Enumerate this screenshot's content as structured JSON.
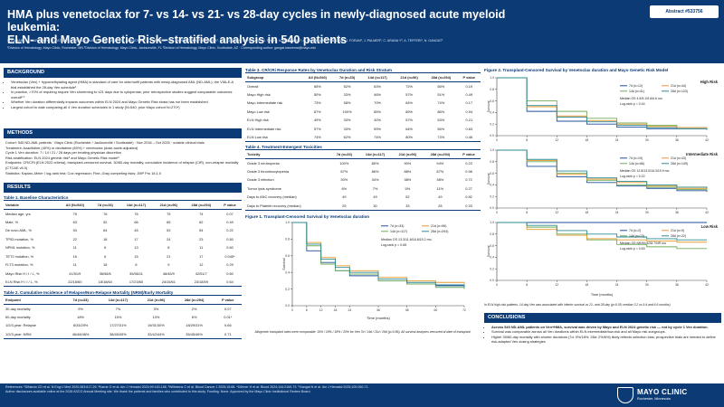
{
  "header": {
    "title_line1": "HMA plus venetoclax for 7- vs 14- vs 21- vs 28-day cycles in newly-diagnosed acute myeloid leukemia:",
    "title_line2": "ELN- and Mayo Genetic Risk–stratified analysis in 540 patients",
    "authors": "S. KUMAR¹, M. WARRAICH¹, M. FATIMA¹, K. MCCULLOUGH¹, A. AL-KALI¹, H.B. ALKHATEEB¹, K.H. BEGNA¹, A.A. MANGAONKAR¹, A. SAUBA¹, M.R. LITZOW¹, W. HOGAN¹, M. SHAH¹, M.M. PATNAIK¹, A. PARDANANI¹, T. BADAR², J. FORAN², J. PALMER³, C. ARANA Y³, A. TEFFERI¹, N. GANGAT¹",
    "affiliations": "¹Division of Hematology, Mayo Clinic, Rochester, MN  ²Division of Hematology, Mayo Clinic, Jacksonville, FL  ³Division of Hematology, Mayo Clinic, Scottsdale, AZ  · Corresponding author: gangat.naseema@mayo.edu",
    "abstract_badge": "Abstract #533756"
  },
  "background": {
    "heading": "BACKGROUND",
    "bullets": [
      "Venetoclax (Ven) + hypomethylating agent (HMA) is standard of care for older/unfit patients with newly-diagnosed AML (ND-AML); the VIALE-A trial established the 28-day Ven schedule¹",
      "In practice, >70% of requiring require Ven shortening to ≤21 days due to cytopenias; prior retrospective studies suggest comparable outcomes overall²·³",
      "Whether Ven duration differentially impacts outcomes within ELN 2024 and Mayo Genetic Risk strata has not been established",
      "Largest cohort to date comparing all 4 Ven duration schedules in 1 study (N=540; prior Mayo cohort N=270⁴)"
    ]
  },
  "methods": {
    "heading": "METHODS",
    "lines": [
      "Cohort: 540 ND-AML patients · Mayo Clinic (Rochester / Jacksonville / Scottsdale) · Nov 2018 – Oct 2025 · outside clinical trials",
      "Treatment: Azacitidine (40%) or decitabine (60%) + venetoclax (dose acide-adjusted)",
      "Cycle 1 Ven duration: 7 / 14 / 21 / 28 days per treating physician discretion",
      "Risk stratification: ELN 2024 genetic risk⁶ and Mayo Genetic Risk model⁵",
      "Endpoints: CR/CRi (ELN 2022 criteria), transplant-censored survival, 30/60-day mortality, cumulative incidence of relapse (CIR), non-relapse mortality (CTCAE v5.0)",
      "Statistics: Kaplan–Meier / log-rank test; Cox regression; Fine–Gray competing risks; JMP Pro 18.1.0"
    ]
  },
  "results": {
    "heading": "RESULTS"
  },
  "table1": {
    "title": "Table 1. Baseline Characteristics",
    "headers": [
      "Variable",
      "All (N=540)",
      "7d (n=33)",
      "14d (n=117)",
      "21d (n=96)",
      "28d (n=294)",
      "P value"
    ],
    "rows": [
      [
        "Median age, yrs",
        "75",
        "76",
        "76",
        "75",
        "74",
        "0.07"
      ],
      [
        "Male, %",
        "63",
        "52",
        "66",
        "65",
        "62",
        "0.49"
      ],
      [
        "De novo AML, %",
        "53",
        "64",
        "45",
        "53",
        "54",
        "0.22"
      ],
      [
        "TP53 mutation, %",
        "22",
        "18",
        "17",
        "24",
        "23",
        "0.50"
      ],
      [
        "NPM1 mutation, %",
        "11",
        "6",
        "13",
        "8",
        "11",
        "0.60"
      ],
      [
        "TET2 mutation, %",
        "16",
        "6",
        "15",
        "21",
        "17",
        "0.045*"
      ],
      [
        "FLT3 mutation, %",
        "11",
        "18",
        "8",
        "9",
        "12",
        "0.29"
      ],
      [
        "Mayo Risk H / I / L, %",
        "41/51/9",
        "36/58/6",
        "35/56/11",
        "46/45/9",
        "42/51/7",
        "0.60"
      ],
      [
        "ELN Risk H / I / L, %",
        "22/18/60",
        "18/18/64",
        "17/23/60",
        "24/15/61",
        "23/18/59",
        "0.64"
      ]
    ]
  },
  "table2": {
    "title": "Table 2. Cumulative Incidence of Relapse/Non-Relapse Mortality (NRM)/Early Mortality",
    "headers": [
      "Endpoint",
      "7d (n=33)",
      "14d (n=117)",
      "21d (n=96)",
      "28d (n=294)",
      "P value"
    ],
    "rows": [
      [
        "30-day mortality",
        "9%",
        "7%",
        "3%",
        "2%",
        "0.07"
      ],
      [
        "60-day mortality",
        "18%",
        "15%",
        "13%",
        "6%",
        "0.01*"
      ],
      [
        "1/2/3-year: Relapse",
        "6/33/29%",
        "17/27/31%",
        "19/31/30%",
        "18/29/31%",
        "0.66"
      ],
      [
        "1/2/3-year: NRM",
        "46/48/48%",
        "38/45/45%",
        "32/42/44%",
        "35/45/46%",
        "0.71"
      ]
    ]
  },
  "table3": {
    "title": "Table 3. CR/CRi Response Rates by Venetoclax Duration and Risk Stratum",
    "headers": [
      "Subgroup",
      "All (N=540)",
      "7d (n=33)",
      "14d (n=117)",
      "21d (n=96)",
      "28d (n=294)",
      "P value"
    ],
    "rows": [
      [
        "Overall",
        "65%",
        "52%",
        "63%",
        "72%",
        "65%",
        "0.19"
      ],
      [
        "Mayo High risk",
        "50%",
        "33%",
        "46%",
        "57%",
        "51%",
        "0.49"
      ],
      [
        "Mayo Intermediate risk",
        "73%",
        "58%",
        "70%",
        "84%",
        "74%",
        "0.17"
      ],
      [
        "Mayo Low risk",
        "87%",
        "100%",
        "85%",
        "89%",
        "86%",
        "0.94"
      ],
      [
        "ELN High risk",
        "49%",
        "33%",
        "30%",
        "57%",
        "53%",
        "0.21"
      ],
      [
        "ELN Intermediate risk",
        "57%",
        "33%",
        "59%",
        "64%",
        "56%",
        "0.63"
      ],
      [
        "ELN Low risk",
        "74%",
        "62%",
        "74%",
        "80%",
        "73%",
        "0.46"
      ]
    ]
  },
  "table4": {
    "title": "Table 4. Treatment-Emergent Toxicities",
    "headers": [
      "Toxicity",
      "7d (n=33)",
      "14d (n=117)",
      "21d (n=96)",
      "28d (n=294)",
      "P value"
    ],
    "rows": [
      [
        "Grade 3 neutropenia",
        "100%",
        "85%",
        "90%",
        "94%",
        "0.23"
      ],
      [
        "Grade 3 thrombocytopenia",
        "87%",
        "86%",
        "88%",
        "87%",
        "0.98"
      ],
      [
        "Grade 3 infection",
        "30%",
        "34%",
        "38%",
        "38%",
        "0.72"
      ],
      [
        "Tumor lysis syndrome",
        "6%",
        "7%",
        "5%",
        "11%",
        "0.27"
      ],
      [
        "Days to ANC recovery (median)",
        "49",
        "49",
        "52",
        "49",
        "0.82"
      ],
      [
        "Days to Platelet recovery (median)",
        "25",
        "30",
        "33",
        "28",
        "0.33"
      ]
    ]
  },
  "figure1": {
    "title": "Figure 1. Transplant-Censored Survival by Venetoclax duration",
    "legend": [
      "7d (n=33)",
      "21d (n=96)",
      "14d (n=117)",
      "28d (n=294)"
    ],
    "median_os": "Median OS   13.3/11.8/16.8/15.2 mo",
    "logrank": "Log-rank  p = 0.65",
    "xlabel": "Time (months)",
    "ylabel": "Survival",
    "caption": "Allogeneic transplant rates were comparable: 15% / 18% / 18% / 20% for Ven 7d / 14d / 21d / 28d (p=0.86). All survival analyses censored at date of transplant."
  },
  "figure2": {
    "title": "Figure 2. Transplant-Censored Survival by Venetoclax duration and Mayo Genetic Risk Model",
    "panels": [
      {
        "label": "High Risk",
        "legend": [
          "7d (n=12)",
          "21d (n=44)",
          "14d (n=41)",
          "28d (n=123)"
        ],
        "median": "Median OS   4.5/5.1/9.6/6.6 mo",
        "logrank": "Log-rank  p = 0.44"
      },
      {
        "label": "Intermediate Risk",
        "legend": [
          "7d (n=19)",
          "21d (n=43)",
          "14d (n=66)",
          "28d (n=149)"
        ],
        "median": "Median OS   12.8/13.0/16.3/19.9 mo",
        "logrank": "Log-rank  p = 0.22"
      },
      {
        "label": "Low Risk",
        "legend": [
          "7d (n=2)",
          "21d (n=9)",
          "14d (n=13)",
          "28d (n=22)"
        ],
        "median": "Median OS   NR/59.8/28.7/NR mo",
        "logrank": "Log-rank  p = 0.63"
      }
    ],
    "ylabel": "Survival",
    "xlabel": "Time (months)",
    "caption": "In ELN high-risk patients, 14-day Ven was associated with inferior survival vs 21- and 28-day (p<0.05; median 3.2 vs 9.4 and 6.6 months)"
  },
  "conclusions": {
    "heading": "CONCLUSIONS",
    "bullets": [
      "Across 540 ND-AML patients on Ven+HMA, survival was driven by Mayo and ELN 2024 genetic risk — not by cycle 1 Ven duration.",
      "Survival was comparable across all Ven durations within ELN intermediate/low-risk and all Mayo risk subgroups.",
      "Higher 30/60-day mortality with shorter durations (7d: 9%/18%; 28d: 2%/6%) likely reflects selection bias; prospective trials are needed to define risk-adapted Ven dosing strategies"
    ]
  },
  "footer": {
    "refs": "References: ¹DiNardo CD et al. N Engl J Med 2020;383:617-29. ²Karrar O et al. Am J Hematol 2024;99:163-166. ³Willekens C et al. Blood Cancer J 2025;15:68. ⁴Döhner H et al. Blood 2024;144:2169-73. ⁵Gangat N et al. Am J Hematol 2025;100:260-71.",
    "refs2": "Author disclosures available online at the 2026 ASCO Annual Meeting site. We thank the patients and families who contributed to this study. Funding: None. Approved by the Mayo Clinic Institutional Review Board.",
    "brand": "MAYO CLINIC",
    "brand_sub": "Rochester, Minnesota"
  },
  "km_colors": {
    "d7": "#1f4e9c",
    "d14": "#6fae5a",
    "d21": "#e69b2e",
    "d28": "#2a8a94"
  },
  "chart_data": [
    {
      "type": "line",
      "title": "Figure 1. Transplant-Censored Survival by Venetoclax duration",
      "xlabel": "Time (months)",
      "ylabel": "Survival",
      "xlim": [
        0,
        72
      ],
      "ylim": [
        0,
        1
      ],
      "x": [
        0,
        6,
        12,
        18,
        24,
        36,
        48,
        60,
        72
      ],
      "series": [
        {
          "name": "7d (n=33)",
          "values": [
            1.0,
            0.66,
            0.52,
            0.42,
            0.36,
            0.3,
            0.26,
            0.24,
            0.24
          ]
        },
        {
          "name": "14d (n=117)",
          "values": [
            1.0,
            0.72,
            0.5,
            0.42,
            0.38,
            0.3,
            0.26,
            0.22,
            0.2
          ]
        },
        {
          "name": "21d (n=96)",
          "values": [
            1.0,
            0.76,
            0.58,
            0.48,
            0.42,
            0.34,
            0.3,
            0.28,
            0.26
          ]
        },
        {
          "name": "28d (n=294)",
          "values": [
            1.0,
            0.74,
            0.56,
            0.46,
            0.4,
            0.32,
            0.28,
            0.25,
            0.22
          ]
        }
      ]
    },
    {
      "type": "line",
      "title": "High Risk",
      "xlabel": "",
      "ylabel": "Survival",
      "xlim": [
        0,
        42
      ],
      "ylim": [
        0,
        1
      ],
      "x": [
        0,
        6,
        12,
        18,
        24,
        30,
        36,
        42
      ],
      "series": [
        {
          "name": "7d (n=12)",
          "values": [
            1.0,
            0.42,
            0.25,
            0.2,
            0.15,
            0.12,
            0.12,
            0.1
          ]
        },
        {
          "name": "14d (n=41)",
          "values": [
            1.0,
            0.6,
            0.42,
            0.3,
            0.22,
            0.18,
            0.14,
            0.12
          ]
        },
        {
          "name": "21d (n=44)",
          "values": [
            1.0,
            0.5,
            0.34,
            0.26,
            0.2,
            0.16,
            0.14,
            0.12
          ]
        },
        {
          "name": "28d (n=123)",
          "values": [
            1.0,
            0.52,
            0.32,
            0.24,
            0.18,
            0.14,
            0.12,
            0.1
          ]
        }
      ]
    },
    {
      "type": "line",
      "title": "Intermediate Risk",
      "xlabel": "",
      "ylabel": "Survival",
      "xlim": [
        0,
        42
      ],
      "ylim": [
        0,
        1
      ],
      "x": [
        0,
        6,
        12,
        18,
        24,
        30,
        36,
        42
      ],
      "series": [
        {
          "name": "7d (n=19)",
          "values": [
            1.0,
            0.72,
            0.54,
            0.44,
            0.38,
            0.34,
            0.3,
            0.28
          ]
        },
        {
          "name": "14d (n=66)",
          "values": [
            1.0,
            0.8,
            0.6,
            0.48,
            0.4,
            0.36,
            0.32,
            0.3
          ]
        },
        {
          "name": "21d (n=43)",
          "values": [
            1.0,
            0.82,
            0.58,
            0.5,
            0.44,
            0.38,
            0.34,
            0.32
          ]
        },
        {
          "name": "28d (n=149)",
          "values": [
            1.0,
            0.84,
            0.64,
            0.52,
            0.46,
            0.4,
            0.36,
            0.34
          ]
        }
      ]
    },
    {
      "type": "line",
      "title": "Low Risk",
      "xlabel": "Time (months)",
      "ylabel": "Survival",
      "xlim": [
        0,
        42
      ],
      "ylim": [
        0,
        1
      ],
      "x": [
        0,
        6,
        12,
        18,
        24,
        30,
        36,
        42
      ],
      "series": [
        {
          "name": "7d (n=2)",
          "values": [
            1.0,
            1.0,
            1.0,
            1.0,
            1.0,
            1.0,
            1.0,
            1.0
          ]
        },
        {
          "name": "14d (n=13)",
          "values": [
            1.0,
            0.92,
            0.8,
            0.7,
            0.62,
            0.58,
            0.55,
            0.55
          ]
        },
        {
          "name": "21d (n=9)",
          "values": [
            1.0,
            0.88,
            0.78,
            0.72,
            0.7,
            0.68,
            0.66,
            0.66
          ]
        },
        {
          "name": "28d (n=22)",
          "values": [
            1.0,
            0.95,
            0.86,
            0.8,
            0.75,
            0.72,
            0.7,
            0.7
          ]
        }
      ]
    }
  ]
}
